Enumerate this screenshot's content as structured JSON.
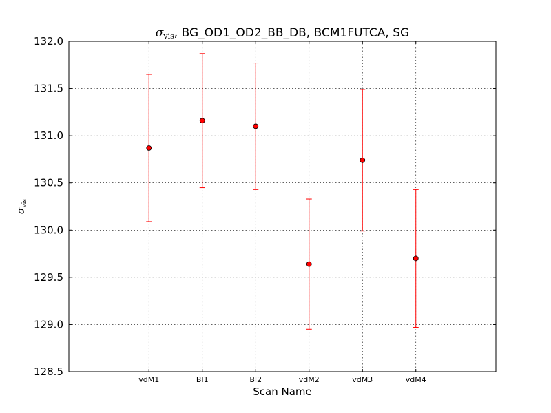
{
  "chart_data": {
    "type": "scatter",
    "title": {
      "symbol": "σ",
      "subscript": "vis",
      "text": ", BG_OD1_OD2_BB_DB, BCM1FUTCA, SG"
    },
    "xlabel": "Scan Name",
    "ylabel": {
      "symbol": "σ",
      "subscript": "vis"
    },
    "categories": [
      "vdM1",
      "BI1",
      "BI2",
      "vdM2",
      "vdM3",
      "vdM4"
    ],
    "ylim": [
      128.5,
      132.0
    ],
    "yticks": [
      "128.5",
      "129.0",
      "129.5",
      "130.0",
      "130.5",
      "131.0",
      "131.5",
      "132.0"
    ],
    "grid": true,
    "series": [
      {
        "values": [
          130.87,
          131.16,
          131.1,
          129.64,
          130.74,
          129.7
        ],
        "errors": [
          0.78,
          0.71,
          0.67,
          0.69,
          0.75,
          0.73
        ]
      }
    ],
    "colors": {
      "marker": "#ff0000",
      "marker_edge": "#000000",
      "errorbar": "#ff0000"
    }
  }
}
